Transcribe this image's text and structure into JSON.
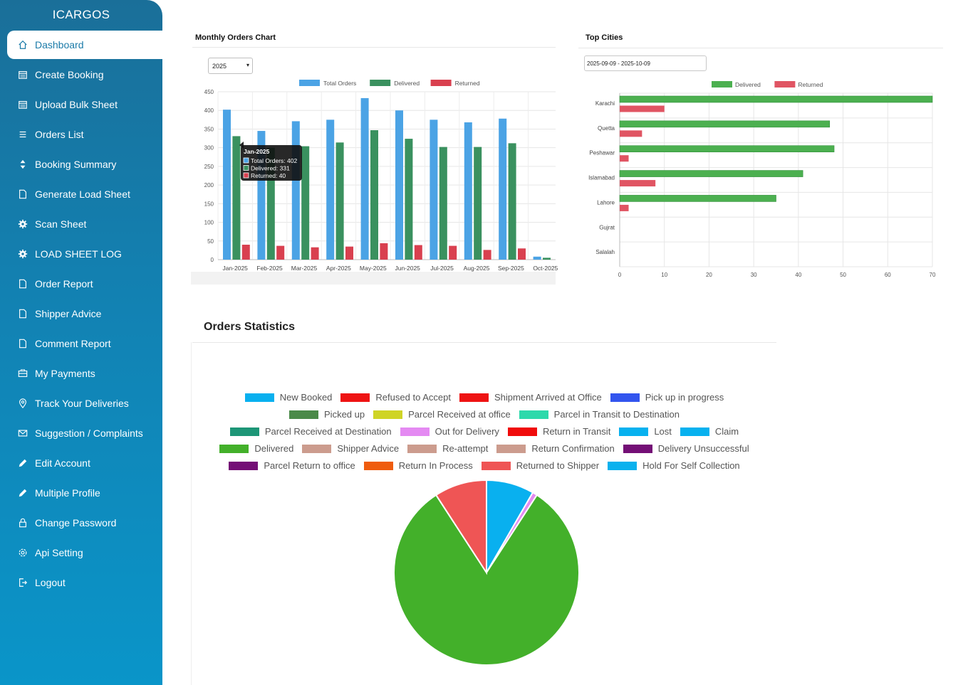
{
  "app": {
    "brand": "ICARGOS"
  },
  "sidebar": {
    "items": [
      {
        "label": "Dashboard",
        "icon": "home-icon",
        "active": true
      },
      {
        "label": "Create Booking",
        "icon": "calendar-icon"
      },
      {
        "label": "Upload Bulk Sheet",
        "icon": "calendar-icon"
      },
      {
        "label": "Orders List",
        "icon": "list-icon"
      },
      {
        "label": "Booking Summary",
        "icon": "sort-icon"
      },
      {
        "label": "Generate Load Sheet",
        "icon": "file-icon"
      },
      {
        "label": "Scan Sheet",
        "icon": "gear-icon"
      },
      {
        "label": "LOAD SHEET LOG",
        "icon": "gear-icon"
      },
      {
        "label": "Order Report",
        "icon": "file-icon"
      },
      {
        "label": "Shipper Advice",
        "icon": "file-icon"
      },
      {
        "label": "Comment Report",
        "icon": "file-icon"
      },
      {
        "label": "My Payments",
        "icon": "wallet-icon"
      },
      {
        "label": "Track Your Deliveries",
        "icon": "location-pin-icon"
      },
      {
        "label": "Suggestion / Complaints",
        "icon": "envelope-icon"
      },
      {
        "label": "Edit Account",
        "icon": "pencil-icon"
      },
      {
        "label": "Multiple Profile",
        "icon": "pencil-icon"
      },
      {
        "label": "Change Password",
        "icon": "lock-icon"
      },
      {
        "label": "Api Setting",
        "icon": "settings-icon"
      },
      {
        "label": "Logout",
        "icon": "logout-icon"
      }
    ]
  },
  "monthly": {
    "title": "Monthly Orders Chart",
    "year_select": "2025",
    "tooltip": {
      "title": "Jan-2025",
      "lines": [
        "Total Orders: 402",
        "Delivered: 331",
        "Returned: 40"
      ]
    }
  },
  "cities": {
    "title": "Top Cities",
    "date_range": "2025-09-09 - 2025-10-09"
  },
  "stats": {
    "title": "Orders Statistics"
  },
  "chart_data": [
    {
      "type": "bar",
      "categories": [
        "Jan-2025",
        "Feb-2025",
        "Mar-2025",
        "Apr-2025",
        "May-2025",
        "Jun-2025",
        "Jul-2025",
        "Aug-2025",
        "Sep-2025",
        "Oct-2025"
      ],
      "series": [
        {
          "name": "Total Orders",
          "color": "#4ba3e5",
          "values": [
            402,
            345,
            371,
            375,
            433,
            400,
            375,
            368,
            378,
            8
          ]
        },
        {
          "name": "Delivered",
          "color": "#3a915f",
          "values": [
            331,
            300,
            304,
            314,
            347,
            324,
            302,
            302,
            312,
            5
          ]
        },
        {
          "name": "Returned",
          "color": "#d9404f",
          "values": [
            40,
            37,
            33,
            35,
            44,
            39,
            37,
            26,
            30,
            0
          ]
        }
      ],
      "ylim": [
        0,
        450
      ],
      "yticks": [
        0,
        50,
        100,
        150,
        200,
        250,
        300,
        350,
        400,
        450
      ],
      "legend": "top",
      "grid": true
    },
    {
      "type": "bar",
      "orientation": "horizontal",
      "categories": [
        "Karachi",
        "Quetta",
        "Peshawar",
        "Islamabad",
        "Lahore",
        "Gujrat",
        "Salalah"
      ],
      "series": [
        {
          "name": "Delivered",
          "color": "#4cb050",
          "values": [
            70,
            47,
            48,
            41,
            35,
            0,
            0
          ]
        },
        {
          "name": "Returned",
          "color": "#e05563",
          "values": [
            10,
            5,
            2,
            8,
            2,
            0,
            0
          ]
        }
      ],
      "xlim": [
        0,
        70
      ],
      "xticks": [
        0,
        10,
        20,
        30,
        40,
        50,
        60,
        70
      ],
      "legend": "top",
      "grid": true
    },
    {
      "type": "pie",
      "categories": [
        "New Booked",
        "Refused to Accept",
        "Shipment Arrived at Office",
        "Pick up in progress",
        "Picked up",
        "Parcel Received at office",
        "Parcel in Transit to Destination",
        "Parcel Received at Destination",
        "Out for Delivery",
        "Return in Transit",
        "Lost",
        "Claim",
        "Delivered",
        "Shipper Advice",
        "Re-attempt",
        "Return Confirmation",
        "Delivery Unsuccessful",
        "Parcel Return to office",
        "Return In Process",
        "Returned to Shipper",
        "Hold For Self Collection"
      ],
      "colors": [
        "#09b0ef",
        "#ee1313",
        "#ee1313",
        "#3355ee",
        "#4b8a49",
        "#cfd426",
        "#2dd9ab",
        "#1d9677",
        "#e48af2",
        "#f00b0b",
        "#07b1ef",
        "#07b1ef",
        "#43b02a",
        "#cc9c8e",
        "#cc9c8e",
        "#cc9c8e",
        "#740f76",
        "#740f76",
        "#ef5c0e",
        "#ef5555",
        "#0bb1ee"
      ],
      "values": [
        2.5,
        0,
        0,
        0,
        0,
        0,
        0,
        0,
        0.25,
        0,
        0,
        0,
        24.5,
        0,
        0,
        0,
        0,
        0,
        0,
        2.75,
        0
      ],
      "legend": "top"
    }
  ]
}
